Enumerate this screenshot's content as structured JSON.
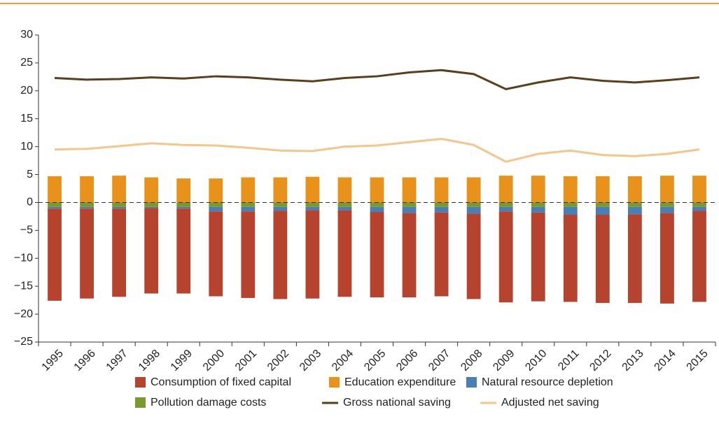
{
  "chart_data": {
    "type": "bar",
    "categories": [
      "1995",
      "1996",
      "1997",
      "1998",
      "1999",
      "2000",
      "2001",
      "2002",
      "2003",
      "2004",
      "2005",
      "2006",
      "2007",
      "2008",
      "2009",
      "2010",
      "2011",
      "2012",
      "2013",
      "2014",
      "2015"
    ],
    "series": [
      {
        "name": "Consumption of fixed capital",
        "type": "bar",
        "color": "#b5432d",
        "values": [
          -16.5,
          -16.1,
          -15.8,
          -15.3,
          -15.2,
          -15.2,
          -15.5,
          -15.8,
          -15.8,
          -15.5,
          -15.3,
          -15.1,
          -15.0,
          -15.3,
          -16.3,
          -15.9,
          -15.6,
          -15.8,
          -15.9,
          -16.2,
          -16.3
        ]
      },
      {
        "name": "Education expenditure",
        "type": "bar",
        "color": "#e8921c",
        "values": [
          4.7,
          4.7,
          4.8,
          4.5,
          4.3,
          4.3,
          4.5,
          4.5,
          4.6,
          4.5,
          4.5,
          4.5,
          4.5,
          4.5,
          4.8,
          4.8,
          4.7,
          4.7,
          4.7,
          4.8,
          4.8
        ]
      },
      {
        "name": "Natural resource depletion",
        "type": "bar",
        "color": "#4a7fb5",
        "values": [
          -0.3,
          -0.3,
          -0.3,
          -0.2,
          -0.3,
          -0.8,
          -0.8,
          -0.7,
          -0.6,
          -0.6,
          -0.9,
          -1.1,
          -1.0,
          -1.2,
          -0.8,
          -1.0,
          -1.4,
          -1.4,
          -1.3,
          -1.1,
          -0.7
        ]
      },
      {
        "name": "Pollution damage costs",
        "type": "bar",
        "color": "#7a9a2e",
        "values": [
          -0.8,
          -0.8,
          -0.8,
          -0.8,
          -0.8,
          -0.8,
          -0.8,
          -0.8,
          -0.8,
          -0.8,
          -0.8,
          -0.8,
          -0.8,
          -0.8,
          -0.8,
          -0.8,
          -0.8,
          -0.8,
          -0.8,
          -0.8,
          -0.8
        ]
      },
      {
        "name": "Gross national saving",
        "type": "line",
        "color": "#5a3e1e",
        "values": [
          22.3,
          22.0,
          22.1,
          22.4,
          22.2,
          22.6,
          22.4,
          22.0,
          21.7,
          22.3,
          22.6,
          23.3,
          23.7,
          23.0,
          20.3,
          21.5,
          22.4,
          21.8,
          21.5,
          21.9,
          22.4
        ]
      },
      {
        "name": "Adjusted net saving",
        "type": "line",
        "color": "#f4c68a",
        "values": [
          9.5,
          9.6,
          10.1,
          10.6,
          10.3,
          10.2,
          9.8,
          9.3,
          9.2,
          10.0,
          10.2,
          10.8,
          11.4,
          10.3,
          7.3,
          8.7,
          9.3,
          8.5,
          8.3,
          8.7,
          9.5
        ]
      }
    ],
    "ylim": [
      -25,
      30
    ],
    "yticks": [
      {
        "value": -25,
        "label": "−25"
      },
      {
        "value": -20,
        "label": "−20"
      },
      {
        "value": -15,
        "label": "−15"
      },
      {
        "value": -10,
        "label": "−10"
      },
      {
        "value": -5,
        "label": "−5"
      },
      0,
      5,
      10,
      15,
      20,
      25,
      30
    ],
    "zero_line": "dashed"
  }
}
